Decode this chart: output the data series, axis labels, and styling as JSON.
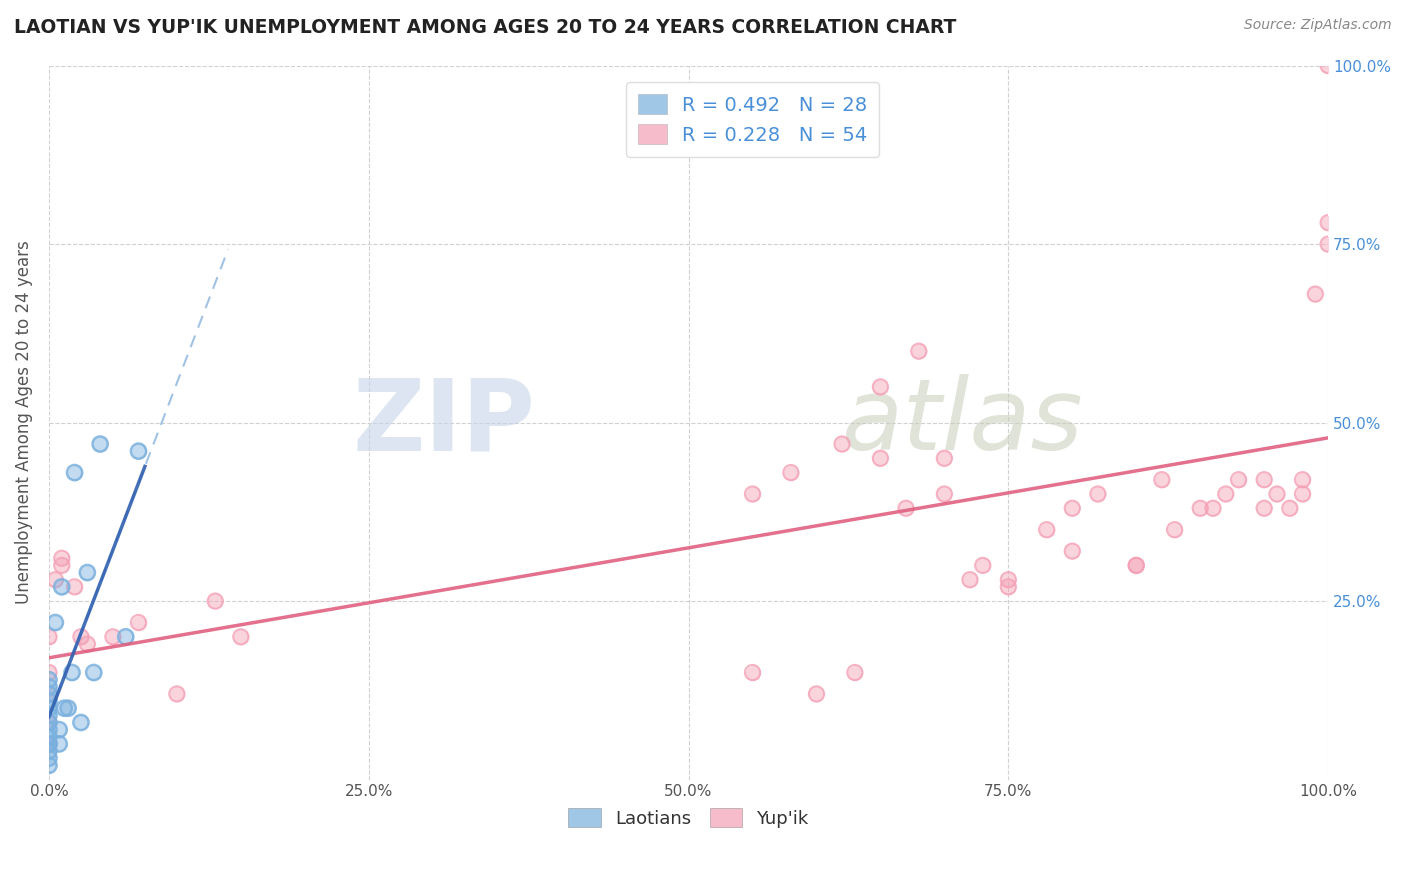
{
  "title": "LAOTIAN VS YUP'IK UNEMPLOYMENT AMONG AGES 20 TO 24 YEARS CORRELATION CHART",
  "source": "Source: ZipAtlas.com",
  "ylabel": "Unemployment Among Ages 20 to 24 years",
  "xlim": [
    0.0,
    1.0
  ],
  "ylim": [
    0.0,
    1.0
  ],
  "xticks": [
    0.0,
    0.25,
    0.5,
    0.75,
    1.0
  ],
  "yticks": [
    0.25,
    0.5,
    0.75,
    1.0
  ],
  "xtick_labels": [
    "0.0%",
    "25.0%",
    "50.0%",
    "75.0%",
    "100.0%"
  ],
  "right_ytick_labels": [
    "25.0%",
    "50.0%",
    "75.0%",
    "100.0%"
  ],
  "right_yticks": [
    0.25,
    0.5,
    0.75,
    1.0
  ],
  "laotian_color": "#7ab0de",
  "yupik_color": "#f4a0b5",
  "trend_laotian_solid_color": "#3060b0",
  "trend_laotian_dashed_color": "#90b8e0",
  "trend_yupik_color": "#e06080",
  "legend_R_laotian": "R = 0.492",
  "legend_N_laotian": "N = 28",
  "legend_R_yupik": "R = 0.228",
  "legend_N_yupik": "N = 54",
  "laotian_x": [
    0.0,
    0.0,
    0.0,
    0.0,
    0.0,
    0.0,
    0.0,
    0.0,
    0.0,
    0.0,
    0.0,
    0.0,
    0.0,
    0.0,
    0.005,
    0.008,
    0.008,
    0.01,
    0.012,
    0.015,
    0.018,
    0.02,
    0.025,
    0.03,
    0.035,
    0.04,
    0.06,
    0.07
  ],
  "laotian_y": [
    0.02,
    0.03,
    0.04,
    0.05,
    0.06,
    0.07,
    0.08,
    0.09,
    0.1,
    0.11,
    0.12,
    0.13,
    0.14,
    0.05,
    0.22,
    0.05,
    0.07,
    0.27,
    0.1,
    0.1,
    0.15,
    0.43,
    0.08,
    0.29,
    0.15,
    0.47,
    0.2,
    0.46
  ],
  "yupik_x": [
    0.0,
    0.0,
    0.0,
    0.0,
    0.0,
    0.005,
    0.01,
    0.01,
    0.02,
    0.025,
    0.03,
    0.05,
    0.07,
    0.1,
    0.13,
    0.15,
    0.55,
    0.6,
    0.63,
    0.65,
    0.68,
    0.7,
    0.72,
    0.73,
    0.75,
    0.78,
    0.8,
    0.82,
    0.85,
    0.87,
    0.88,
    0.9,
    0.91,
    0.92,
    0.93,
    0.95,
    0.95,
    0.96,
    0.97,
    0.98,
    0.98,
    0.99,
    1.0,
    1.0,
    1.0,
    0.55,
    0.58,
    0.62,
    0.65,
    0.67,
    0.7,
    0.75,
    0.8,
    0.85
  ],
  "yupik_y": [
    0.05,
    0.08,
    0.12,
    0.15,
    0.2,
    0.28,
    0.3,
    0.31,
    0.27,
    0.2,
    0.19,
    0.2,
    0.22,
    0.12,
    0.25,
    0.2,
    0.15,
    0.12,
    0.15,
    0.55,
    0.6,
    0.45,
    0.28,
    0.3,
    0.28,
    0.35,
    0.38,
    0.4,
    0.3,
    0.42,
    0.35,
    0.38,
    0.38,
    0.4,
    0.42,
    0.38,
    0.42,
    0.4,
    0.38,
    0.4,
    0.42,
    0.68,
    0.75,
    1.0,
    0.78,
    0.4,
    0.43,
    0.47,
    0.45,
    0.38,
    0.4,
    0.27,
    0.32,
    0.3
  ],
  "background_color": "#ffffff",
  "grid_color": "#cccccc",
  "grid_linestyle": "--",
  "watermark_zip_color": "#c0cfe0",
  "watermark_atlas_color": "#c0c8b8"
}
